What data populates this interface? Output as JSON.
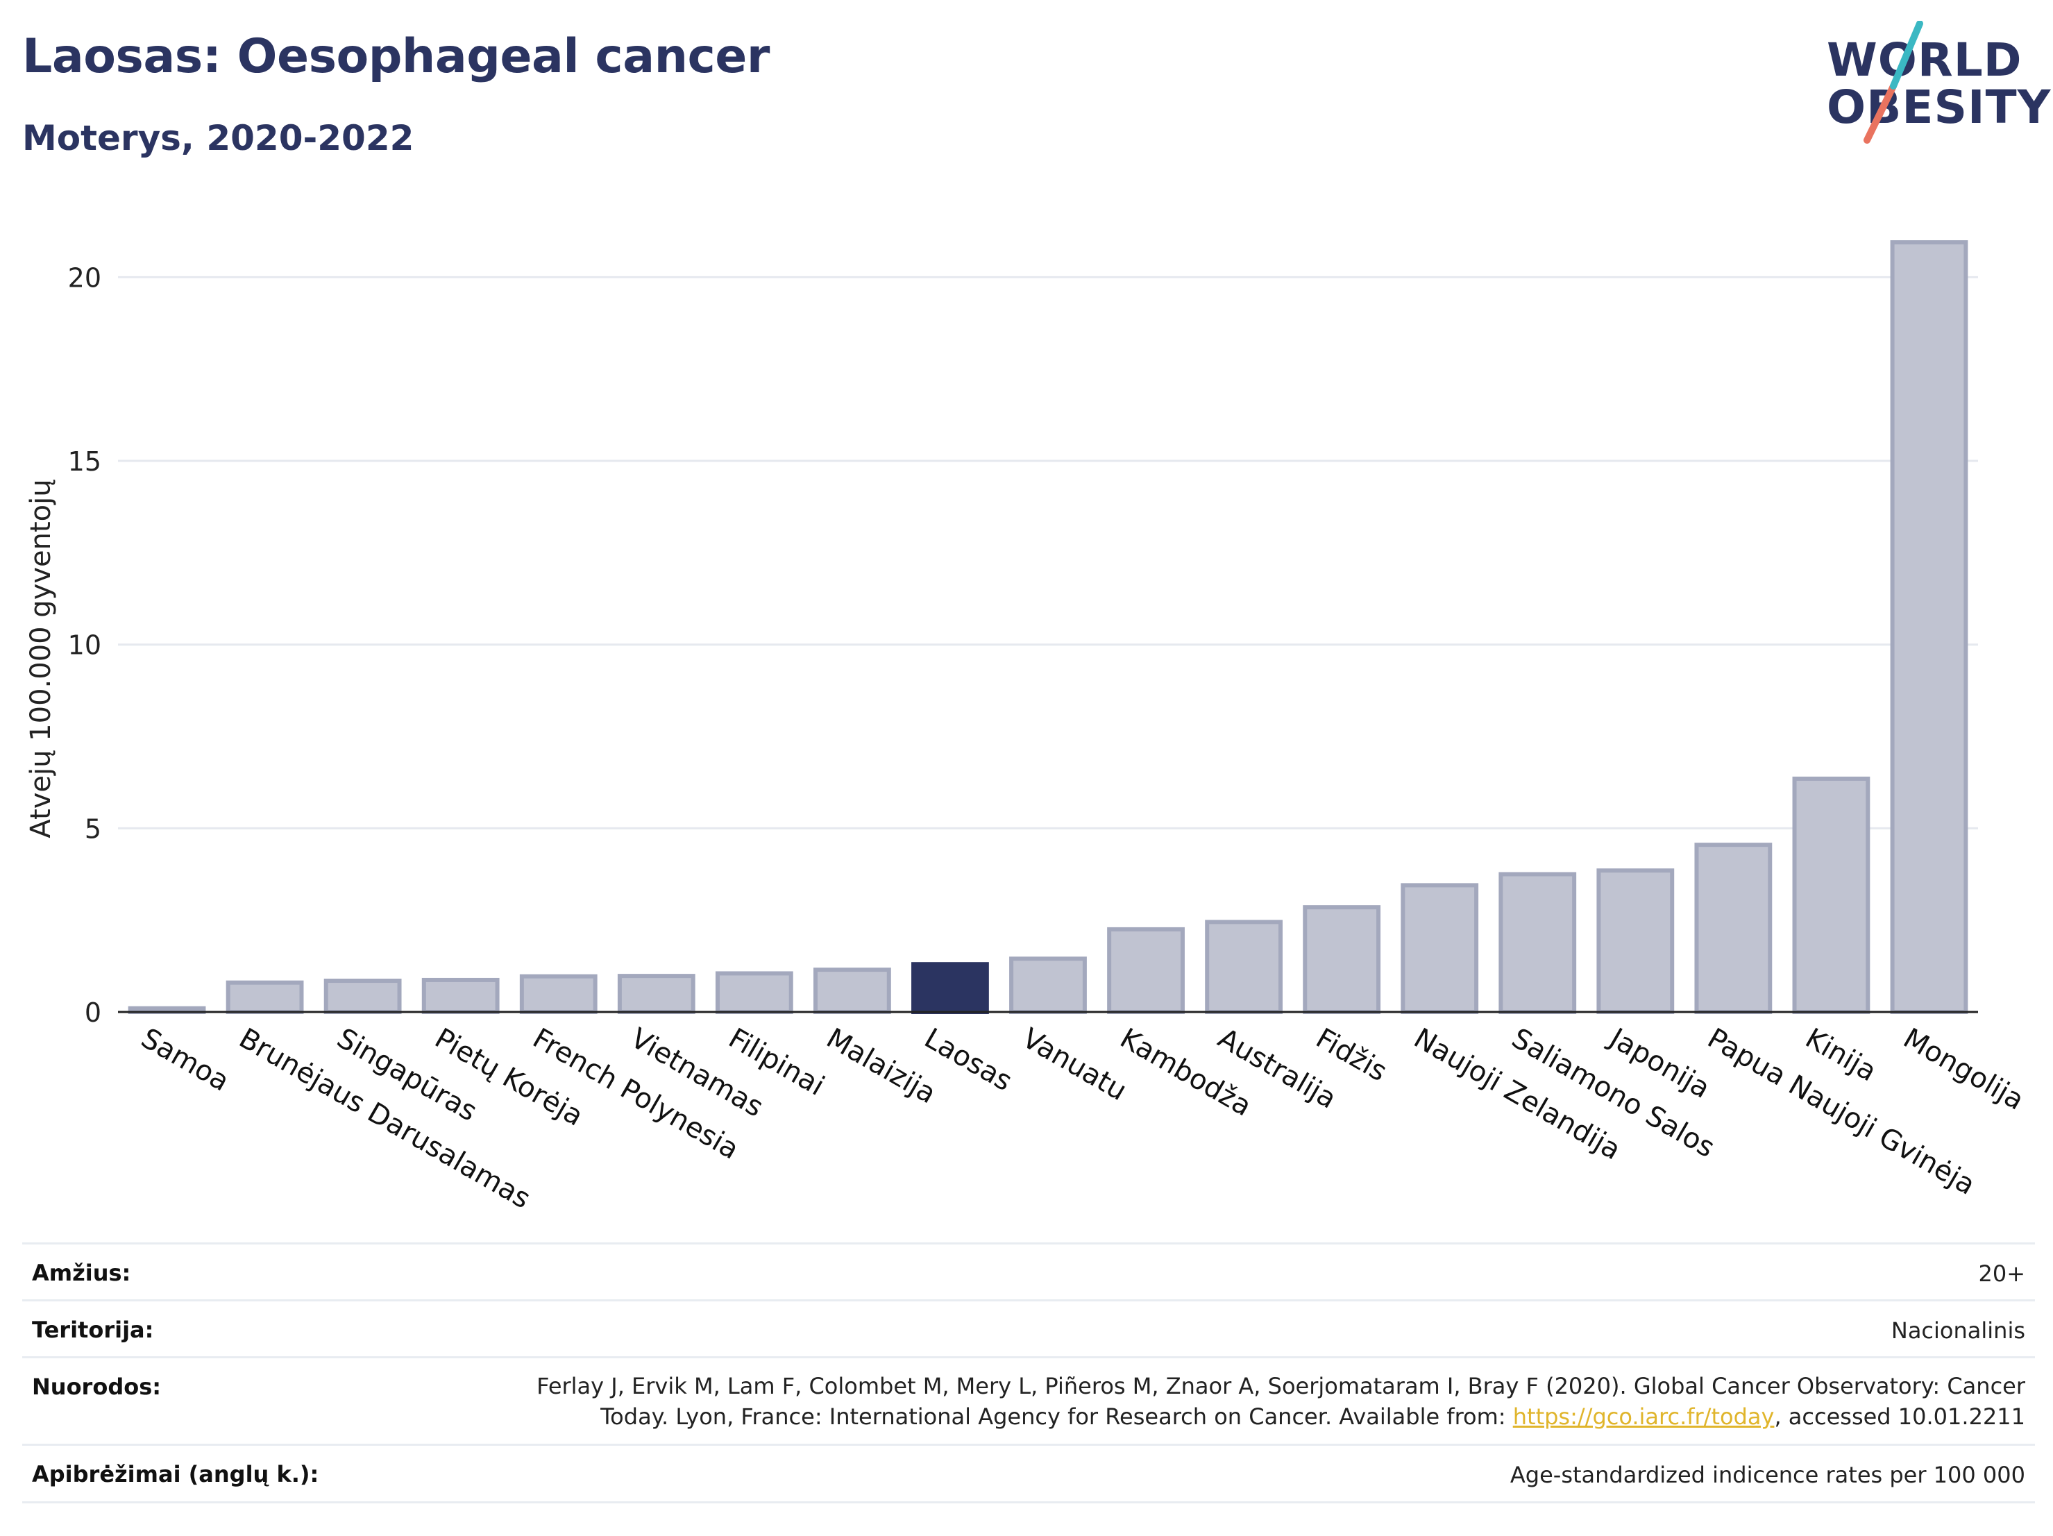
{
  "header": {
    "title": "Laosas: Oesophageal cancer",
    "subtitle": "Moterys, 2020-2022"
  },
  "logo": {
    "line1": "WORLD",
    "line2": "OBESITY"
  },
  "colors": {
    "highlight": "#2b3461",
    "bar": "#c0c3d1",
    "bar_stroke": "#a3a8bd",
    "grid": "#e6e9ef",
    "accent_teal": "#3bb8c3",
    "accent_coral": "#e9735f"
  },
  "chart_data": {
    "type": "bar",
    "ylabel": "Atvejų 100.000 gyventojų",
    "ylim": [
      0,
      21.5
    ],
    "yticks": [
      0,
      5,
      10,
      15,
      20
    ],
    "highlight": "Laosas",
    "categories": [
      "Samoa",
      "Brunėjaus Darusalamas",
      "Singapūras",
      "Pietų Korėja",
      "French Polynesia",
      "Vietnamas",
      "Filipinai",
      "Malaizija",
      "Laosas",
      "Vanuatu",
      "Kambodža",
      "Australija",
      "Fidžis",
      "Naujoji Zelandija",
      "Saliamono Salos",
      "Japonija",
      "Papua Naujoji Gvinėja",
      "Kinija",
      "Mongolija"
    ],
    "values": [
      0.1,
      0.8,
      0.85,
      0.87,
      0.97,
      0.98,
      1.05,
      1.15,
      1.3,
      1.45,
      2.25,
      2.45,
      2.85,
      3.45,
      3.75,
      3.85,
      4.55,
      6.35,
      20.95
    ]
  },
  "meta": {
    "age_label": "Amžius:",
    "age_value": "20+",
    "territory_label": "Teritorija:",
    "territory_value": "Nacionalinis",
    "references_label": "Nuorodos:",
    "references_line1": "Ferlay J, Ervik M, Lam F, Colombet M, Mery L, Piñeros M, Znaor A, Soerjomataram I, Bray F (2020). Global Cancer Observatory: Cancer",
    "references_line2_pre": "Today. Lyon, France: International Agency for Research on Cancer. Available from: ",
    "references_link": "https://gco.iarc.fr/today",
    "references_line2_post": ", accessed 10.01.2211",
    "definitions_label": "Apibrėžimai (anglų k.):",
    "definitions_value": "Age-standardized indicence rates per 100 000"
  }
}
